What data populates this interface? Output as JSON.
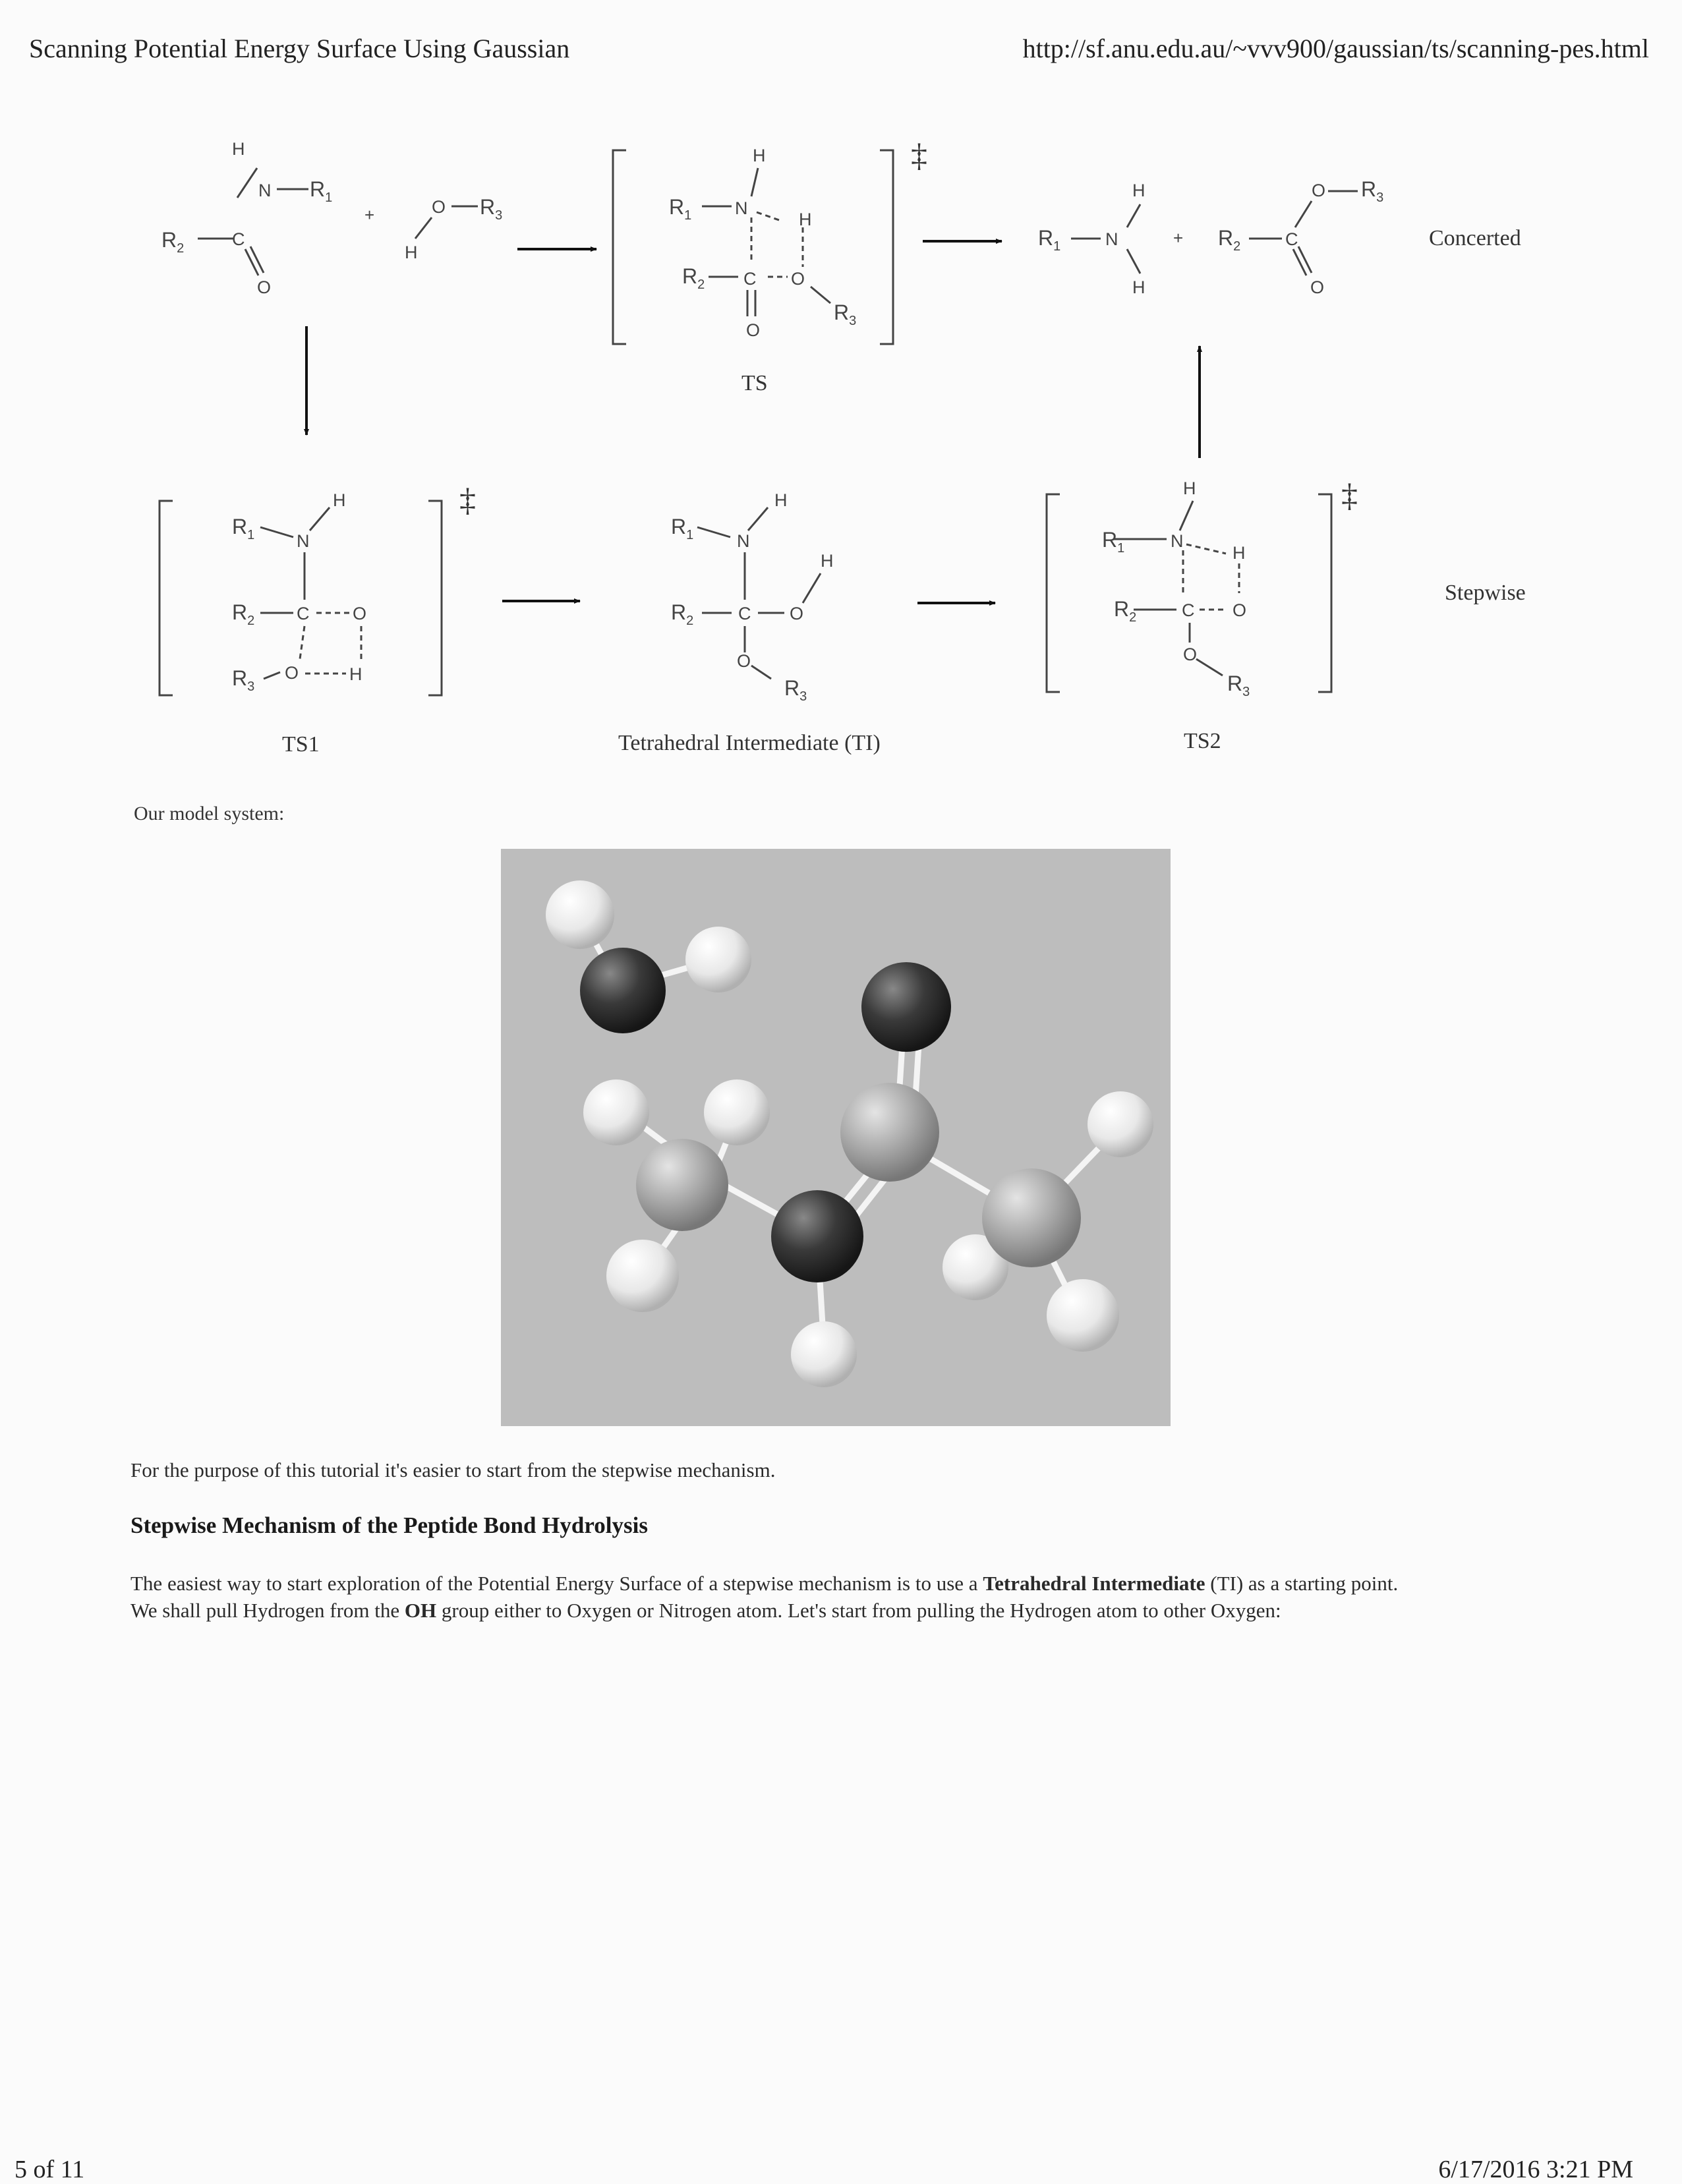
{
  "header": {
    "title": "Scanning Potential Energy Surface Using Gaussian",
    "url": "http://sf.anu.edu.au/~vvv900/gaussian/ts/scanning-pes.html"
  },
  "scheme": {
    "labels": {
      "ts": "TS",
      "ts1": "TS1",
      "tetrahedral": "Tetrahedral Intermediate (TI)",
      "ts2": "TS2",
      "concerted": "Concerted",
      "stepwise": "Stepwise"
    },
    "dagger": "‡",
    "plus": "+",
    "atoms": {
      "h": "H",
      "n": "N",
      "o": "O",
      "c": "C",
      "r1": "R",
      "r2": "R",
      "r3": "R",
      "sub1": "1",
      "sub2": "2",
      "sub3": "3"
    }
  },
  "model_caption": "Our model system:",
  "intro_text": "For the purpose of this tutorial it's easier to start from the stepwise mechanism.",
  "section_heading": "Stepwise Mechanism of the Peptide Bond Hydrolysis",
  "body": {
    "p1_a": "The easiest way to start exploration of the Potential Energy Surface of a stepwise mechanism is to use a ",
    "p1_bold": "Tetrahedral Intermediate",
    "p1_b": " (TI) as a starting point.",
    "p2_a": "We shall pull Hydrogen from the ",
    "p2_bold": "OH",
    "p2_b": " group either to Oxygen or Nitrogen atom. Let's start from pulling the Hydrogen atom to other Oxygen:"
  },
  "footer": {
    "page": "5 of 11",
    "datetime": "6/17/2016 3:21 PM"
  }
}
